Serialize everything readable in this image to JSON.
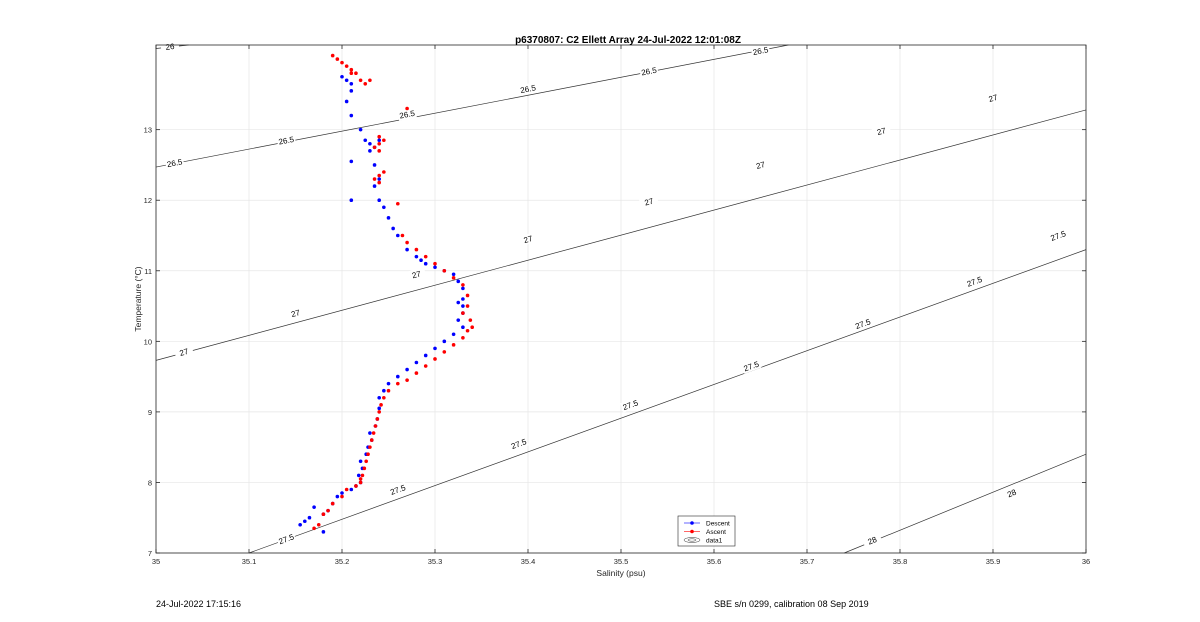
{
  "chart_data": {
    "type": "scatter",
    "title": "p6370807: C2 Ellett Array 24-Jul-2022 12:01:08Z",
    "xlabel": "Salinity (psu)",
    "ylabel": "Temperature (°C)",
    "xlim": [
      35,
      36
    ],
    "ylim": [
      7,
      14.2
    ],
    "xticks": [
      "35",
      "35.1",
      "35.2",
      "35.3",
      "35.4",
      "35.5",
      "35.6",
      "35.7",
      "35.8",
      "35.9",
      "36"
    ],
    "yticks": [
      "7",
      "8",
      "9",
      "10",
      "11",
      "12",
      "13"
    ],
    "grid": true,
    "legend_position": "lower-center",
    "contours": [
      {
        "label": "26",
        "line": [
          [
            35.0,
            14.15
          ],
          [
            35.035,
            14.2
          ]
        ],
        "label_at": [
          35.015,
          14.18
        ]
      },
      {
        "label": "26.5",
        "line": [
          [
            35.0,
            12.47
          ],
          [
            35.68,
            14.2
          ]
        ],
        "label_at": [
          [
            35.02,
            12.53
          ],
          [
            35.14,
            12.85
          ],
          [
            35.27,
            13.22
          ],
          [
            35.4,
            13.58
          ],
          [
            35.53,
            13.83
          ],
          [
            35.65,
            14.12
          ]
        ]
      },
      {
        "label": "27",
        "line": [
          [
            35.0,
            9.73
          ],
          [
            36.0,
            13.28
          ]
        ],
        "label_at": [
          [
            35.03,
            9.85
          ],
          [
            35.15,
            10.4
          ],
          [
            35.28,
            10.95
          ],
          [
            35.4,
            11.45
          ],
          [
            35.53,
            11.98
          ],
          [
            35.65,
            12.5
          ],
          [
            35.78,
            12.98
          ],
          [
            35.9,
            13.45
          ]
        ]
      },
      {
        "label": "27.5",
        "line": [
          [
            35.1,
            7.0
          ],
          [
            36.0,
            11.3
          ]
        ],
        "label_at": [
          [
            35.14,
            7.2
          ],
          [
            35.26,
            7.9
          ],
          [
            35.39,
            8.55
          ],
          [
            35.51,
            9.1
          ],
          [
            35.64,
            9.65
          ],
          [
            35.76,
            10.25
          ],
          [
            35.88,
            10.85
          ],
          [
            35.97,
            11.5
          ]
        ]
      },
      {
        "label": "28",
        "line": [
          [
            35.74,
            7.0
          ],
          [
            36.0,
            8.4
          ]
        ],
        "label_at": [
          [
            35.77,
            7.18
          ],
          [
            35.92,
            7.85
          ]
        ]
      }
    ],
    "series": [
      {
        "name": "Descent",
        "color": "#0000ff",
        "marker": "dot",
        "x": [
          35.2,
          35.205,
          35.21,
          35.21,
          35.205,
          35.21,
          35.22,
          35.225,
          35.23,
          35.235,
          35.24,
          35.23,
          35.235,
          35.24,
          35.21,
          35.21,
          35.235,
          35.24,
          35.245,
          35.25,
          35.255,
          35.26,
          35.27,
          35.28,
          35.285,
          35.29,
          35.3,
          35.31,
          35.32,
          35.325,
          35.33,
          35.33,
          35.325,
          35.33,
          35.33,
          35.325,
          35.33,
          35.32,
          35.31,
          35.3,
          35.29,
          35.28,
          35.27,
          35.26,
          35.25,
          35.245,
          35.24,
          35.24,
          35.238,
          35.236,
          35.23,
          35.232,
          35.228,
          35.226,
          35.22,
          35.222,
          35.218,
          35.22,
          35.215,
          35.21,
          35.2,
          35.195,
          35.19,
          35.185,
          35.18,
          35.17,
          35.165,
          35.16,
          35.155,
          35.18
        ],
        "y": [
          13.75,
          13.7,
          13.65,
          13.55,
          13.4,
          13.2,
          13.0,
          12.85,
          12.8,
          12.75,
          12.85,
          12.7,
          12.5,
          12.3,
          12.55,
          12.0,
          12.2,
          12.0,
          11.9,
          11.75,
          11.6,
          11.5,
          11.3,
          11.2,
          11.15,
          11.1,
          11.05,
          11.0,
          10.95,
          10.85,
          10.75,
          10.6,
          10.55,
          10.5,
          10.4,
          10.3,
          10.2,
          10.1,
          10.0,
          9.9,
          9.8,
          9.7,
          9.6,
          9.5,
          9.4,
          9.3,
          9.2,
          9.05,
          8.9,
          8.8,
          8.7,
          8.6,
          8.5,
          8.4,
          8.3,
          8.2,
          8.1,
          8.0,
          7.95,
          7.9,
          7.85,
          7.8,
          7.7,
          7.6,
          7.55,
          7.65,
          7.5,
          7.45,
          7.4,
          7.3
        ]
      },
      {
        "name": "Ascent",
        "color": "#ff0000",
        "marker": "dot",
        "x": [
          35.19,
          35.195,
          35.2,
          35.205,
          35.21,
          35.215,
          35.22,
          35.225,
          35.23,
          35.21,
          35.27,
          35.24,
          35.245,
          35.24,
          35.235,
          35.24,
          35.245,
          35.24,
          35.235,
          35.24,
          35.26,
          35.265,
          35.27,
          35.28,
          35.29,
          35.3,
          35.31,
          35.32,
          35.33,
          35.335,
          35.335,
          35.33,
          35.338,
          35.34,
          35.335,
          35.33,
          35.32,
          35.31,
          35.3,
          35.29,
          35.28,
          35.27,
          35.26,
          35.25,
          35.245,
          35.242,
          35.24,
          35.238,
          35.236,
          35.234,
          35.232,
          35.23,
          35.228,
          35.226,
          35.224,
          35.222,
          35.22,
          35.22,
          35.215,
          35.205,
          35.2,
          35.19,
          35.185,
          35.18,
          35.175,
          35.17
        ],
        "y": [
          14.05,
          14.0,
          13.95,
          13.9,
          13.85,
          13.8,
          13.7,
          13.65,
          13.7,
          13.8,
          13.3,
          12.9,
          12.85,
          12.8,
          12.75,
          12.7,
          12.4,
          12.35,
          12.3,
          12.25,
          11.95,
          11.5,
          11.4,
          11.3,
          11.2,
          11.1,
          11.0,
          10.9,
          10.8,
          10.65,
          10.5,
          10.4,
          10.3,
          10.2,
          10.15,
          10.05,
          9.95,
          9.85,
          9.75,
          9.65,
          9.55,
          9.45,
          9.4,
          9.3,
          9.2,
          9.1,
          9.0,
          8.9,
          8.8,
          8.7,
          8.6,
          8.5,
          8.4,
          8.3,
          8.2,
          8.1,
          8.05,
          8.0,
          7.95,
          7.9,
          7.8,
          7.7,
          7.6,
          7.55,
          7.4,
          7.35
        ]
      }
    ],
    "legend": [
      {
        "label": "Descent",
        "color": "#0000ff"
      },
      {
        "label": "Ascent",
        "color": "#ff0000"
      },
      {
        "label": "data1",
        "color": "#000000"
      }
    ]
  },
  "footer": {
    "left": "24-Jul-2022 17:15:16",
    "right": "SBE s/n 0299, calibration 08 Sep 2019"
  }
}
